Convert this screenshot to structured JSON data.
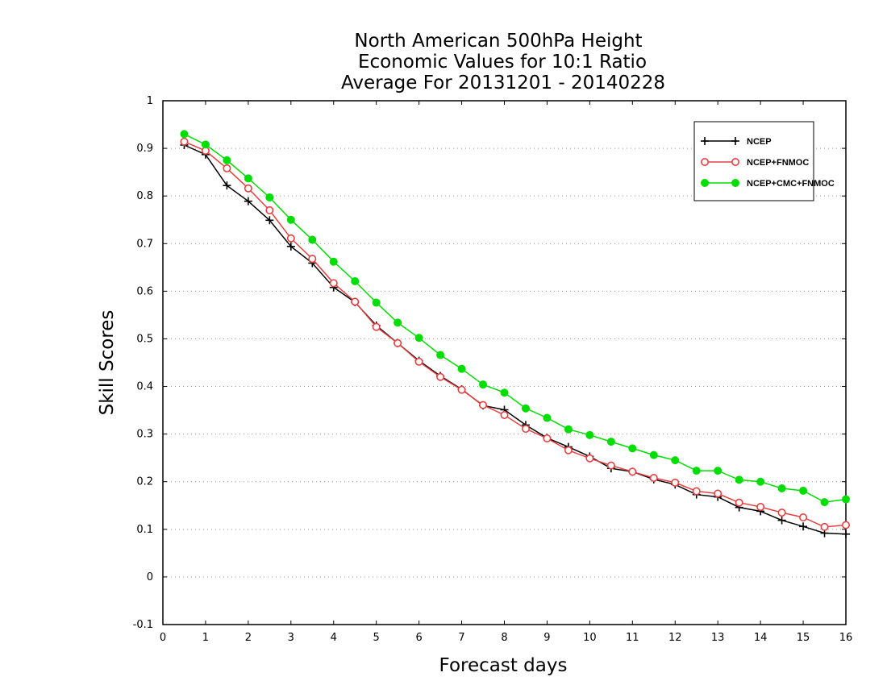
{
  "chart_data": {
    "type": "line",
    "title": [
      "North American 500hPa Height",
      "Economic Values for 10:1 Ratio",
      "Average For 20131201 - 20140228"
    ],
    "xlabel": "Forecast days",
    "ylabel": "Skill Scores",
    "xlim": [
      0,
      16
    ],
    "ylim": [
      -0.1,
      1
    ],
    "xticks": [
      "0",
      "1",
      "2",
      "3",
      "4",
      "5",
      "6",
      "7",
      "8",
      "9",
      "10",
      "11",
      "12",
      "13",
      "14",
      "15",
      "16"
    ],
    "yticks": [
      "-0.1",
      "0",
      "0.1",
      "0.2",
      "0.3",
      "0.4",
      "0.5",
      "0.6",
      "0.7",
      "0.8",
      "0.9",
      "1"
    ],
    "grid": "horizontal dotted",
    "legend_position": "top-right",
    "x": [
      0.5,
      1,
      1.5,
      2,
      2.5,
      3,
      3.5,
      4,
      4.5,
      5,
      5.5,
      6,
      6.5,
      7,
      7.5,
      8,
      8.5,
      9,
      9.5,
      10,
      10.5,
      11,
      11.5,
      12,
      12.5,
      13,
      13.5,
      14,
      14.5,
      15,
      15.5,
      16
    ],
    "series": [
      {
        "name": "NCEP",
        "color": "#000000",
        "marker": "plus",
        "values": [
          0.907,
          0.887,
          0.822,
          0.789,
          0.749,
          0.694,
          0.659,
          0.608,
          0.577,
          0.528,
          0.491,
          0.454,
          0.422,
          0.394,
          0.36,
          0.351,
          0.319,
          0.292,
          0.273,
          0.253,
          0.228,
          0.221,
          0.205,
          0.194,
          0.173,
          0.168,
          0.146,
          0.138,
          0.119,
          0.106,
          0.092,
          0.09
        ]
      },
      {
        "name": "NCEP+FNMOC",
        "color": "#e84040",
        "marker": "open-circle",
        "values": [
          0.914,
          0.895,
          0.858,
          0.816,
          0.77,
          0.711,
          0.668,
          0.617,
          0.578,
          0.525,
          0.491,
          0.452,
          0.42,
          0.393,
          0.361,
          0.34,
          0.311,
          0.291,
          0.266,
          0.249,
          0.234,
          0.221,
          0.208,
          0.198,
          0.18,
          0.175,
          0.156,
          0.147,
          0.135,
          0.125,
          0.105,
          0.109
        ]
      },
      {
        "name": "NCEP+CMC+FNMOC",
        "color": "#00dd00",
        "marker": "filled-circle",
        "values": [
          0.93,
          0.908,
          0.875,
          0.837,
          0.797,
          0.75,
          0.708,
          0.662,
          0.621,
          0.576,
          0.534,
          0.502,
          0.466,
          0.437,
          0.404,
          0.387,
          0.354,
          0.334,
          0.31,
          0.298,
          0.284,
          0.27,
          0.256,
          0.245,
          0.223,
          0.223,
          0.204,
          0.2,
          0.186,
          0.181,
          0.157,
          0.163
        ]
      }
    ]
  }
}
